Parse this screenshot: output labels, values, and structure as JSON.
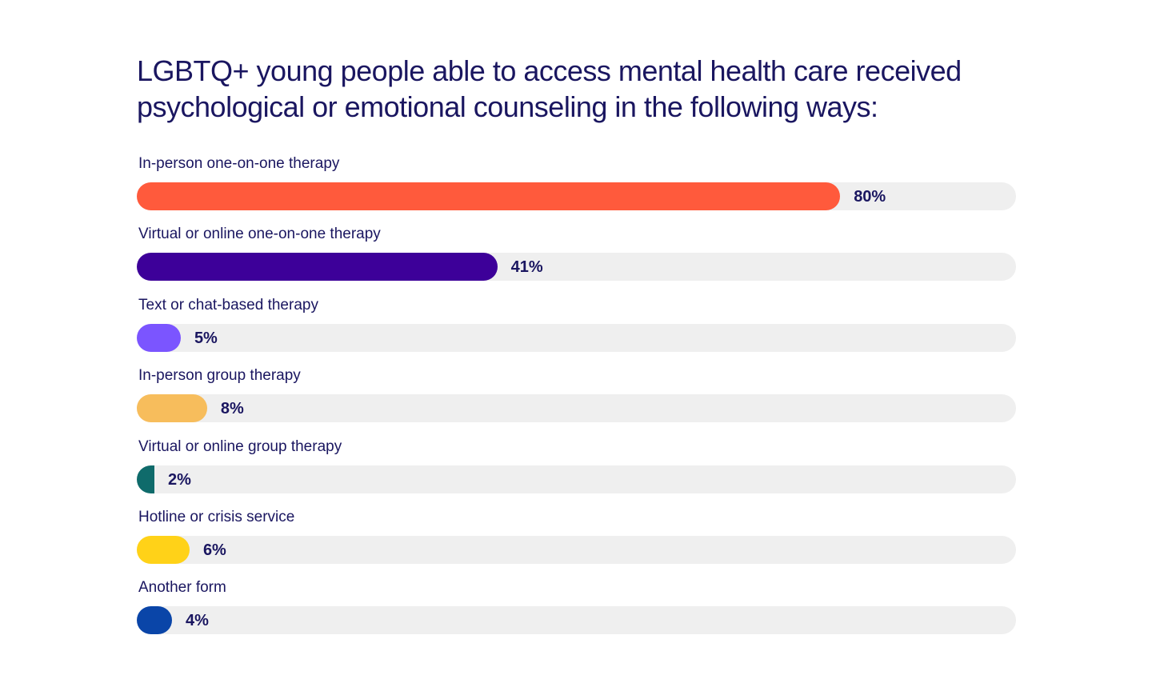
{
  "chart_data": {
    "type": "bar",
    "orientation": "horizontal",
    "title": "LGBTQ+ young people able to access mental health care received psychological or emotional counseling in the following ways:",
    "categories": [
      "In-person one-on-one therapy",
      "Virtual or online one-on-one therapy",
      "Text or chat-based therapy",
      "In-person group therapy",
      "Virtual or online group therapy",
      "Hotline or crisis service",
      "Another form"
    ],
    "values": [
      80,
      41,
      5,
      8,
      2,
      6,
      4
    ],
    "value_labels": [
      "80%",
      "41%",
      "5%",
      "8%",
      "2%",
      "6%",
      "4%"
    ],
    "colors": [
      "#ff5a3c",
      "#3d0099",
      "#7b55ff",
      "#f7bd5c",
      "#0f6b6b",
      "#ffd218",
      "#0a45a8"
    ],
    "track_color": "#efefef",
    "xlim": [
      0,
      100
    ],
    "xlabel": "",
    "ylabel": "",
    "grid": false,
    "legend": "none"
  }
}
